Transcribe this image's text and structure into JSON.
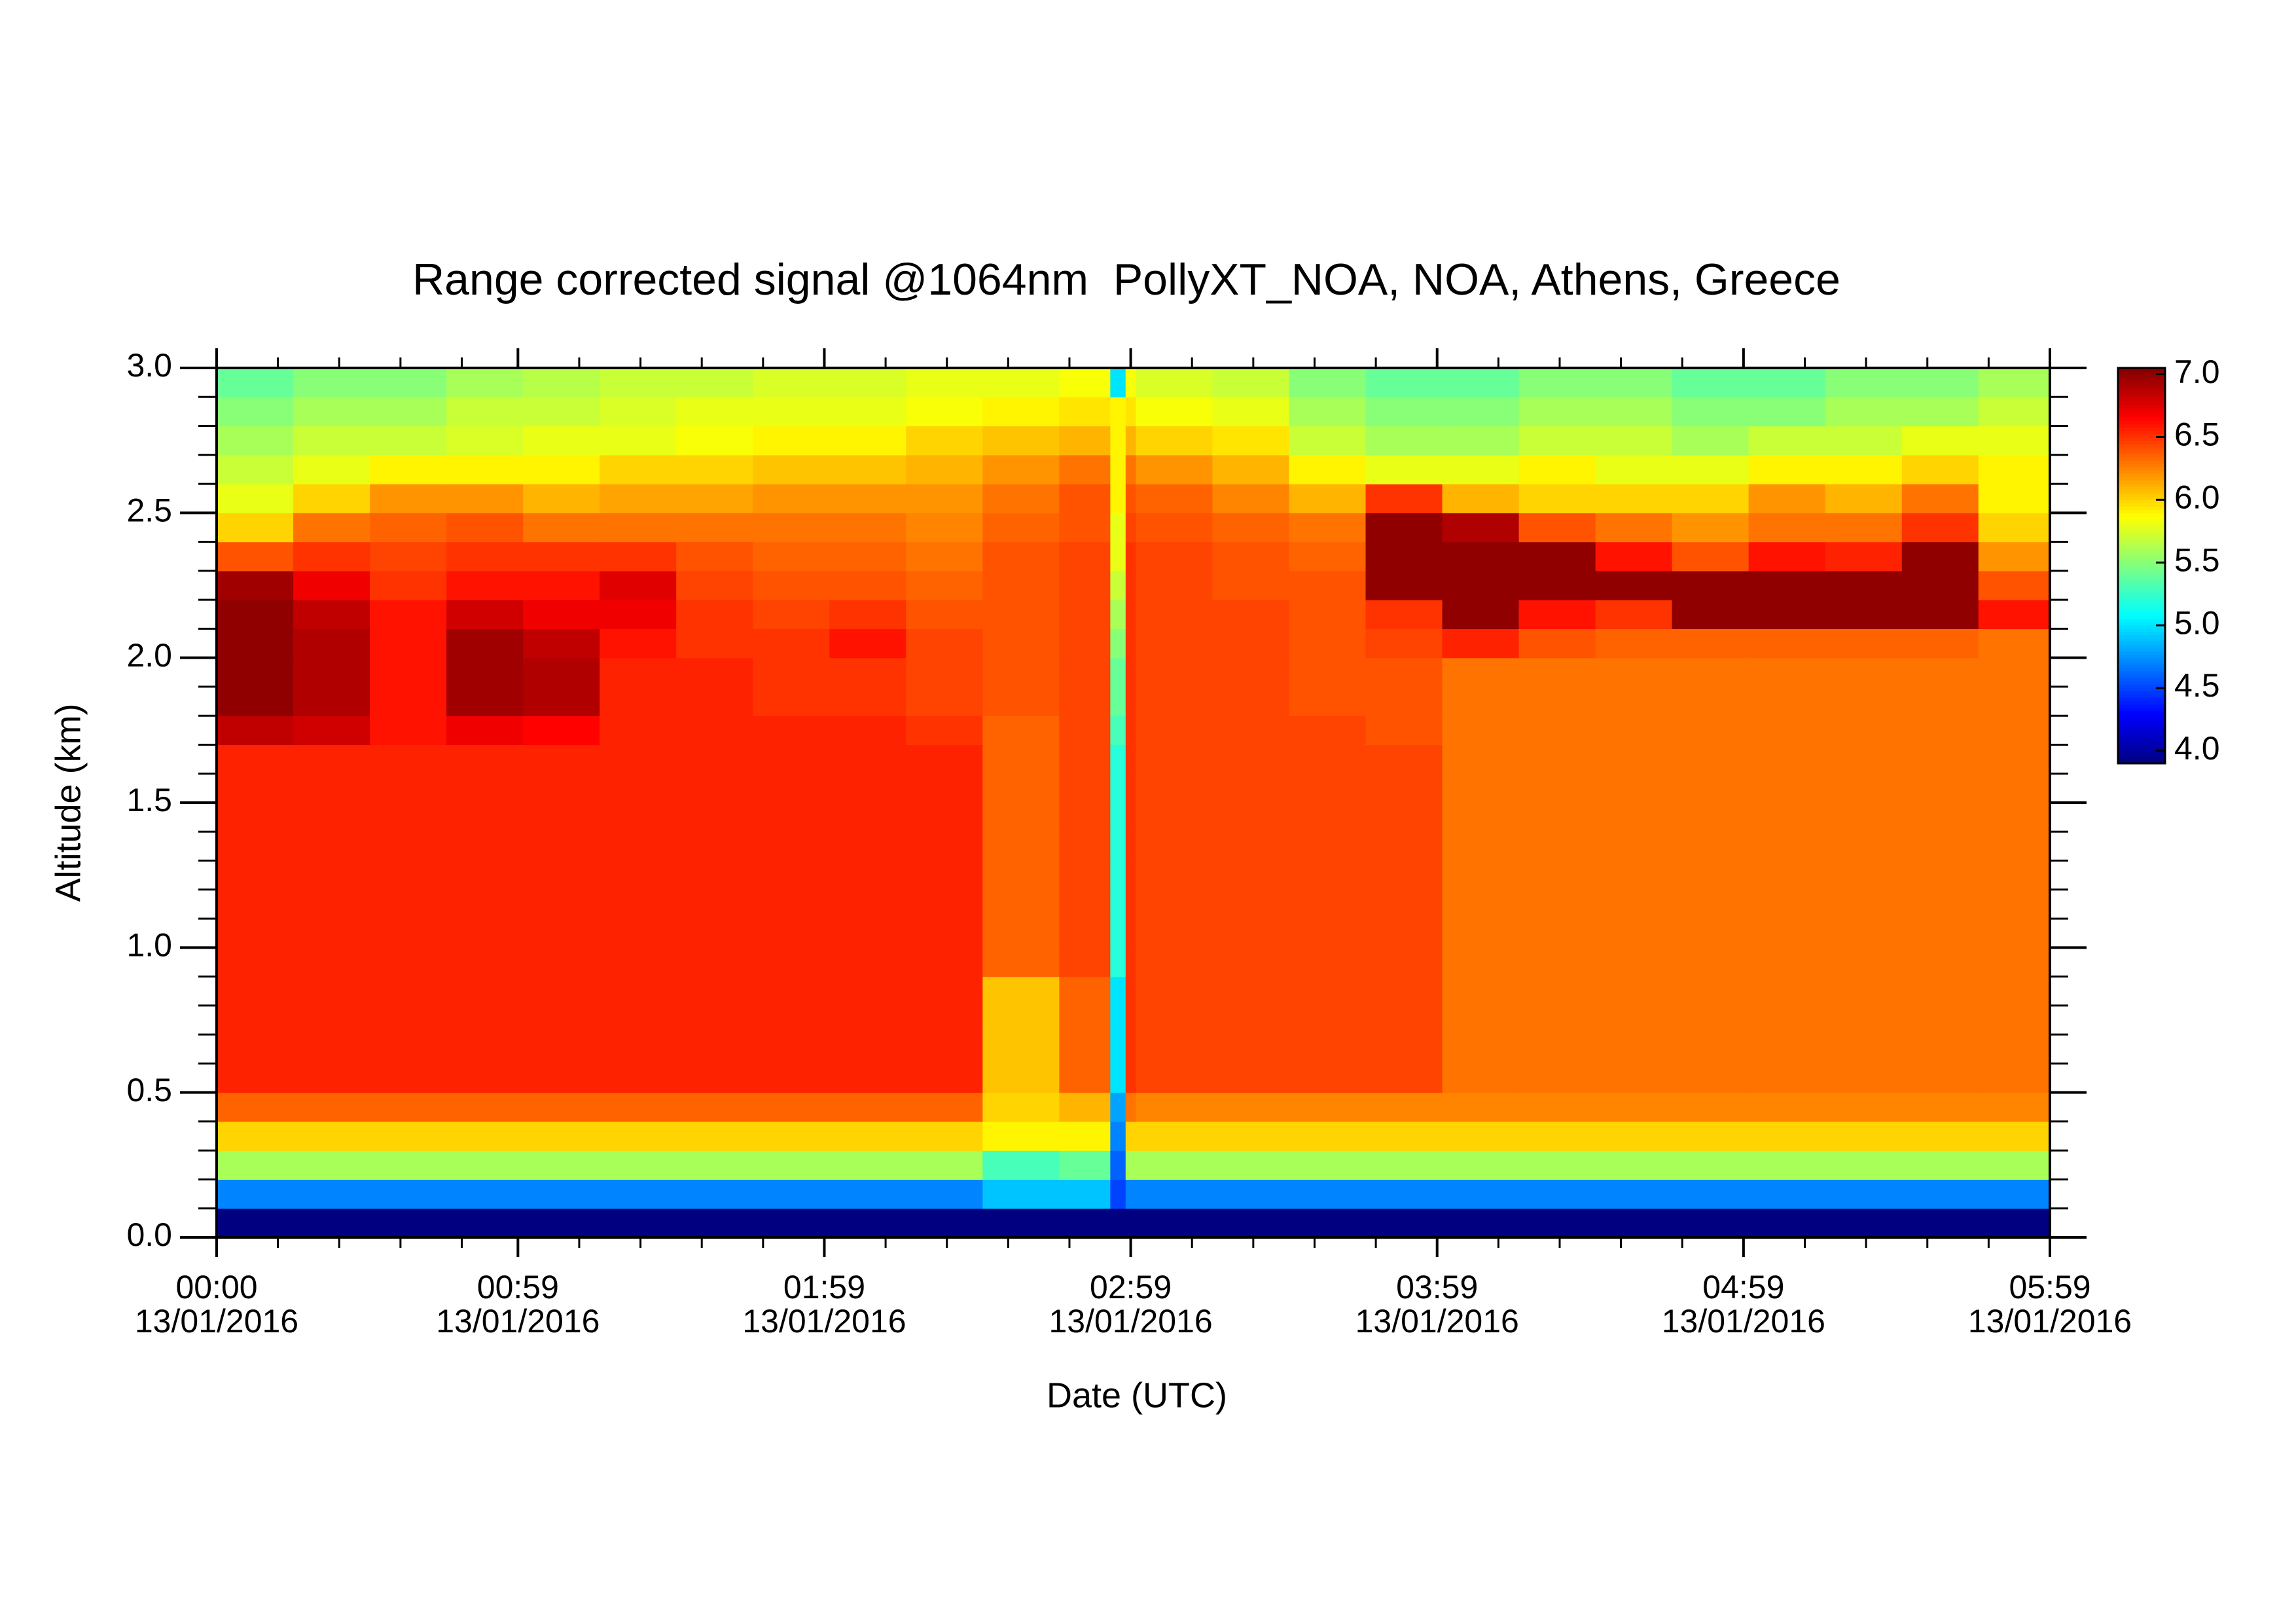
{
  "chart_data": {
    "type": "heatmap",
    "title": "Range corrected signal @1064nm  PollyXT_NOA, NOA, Athens, Greece",
    "x_label": "Date (UTC)",
    "y_label": "Altitude (km)",
    "xtick_date": "13/01/2016",
    "colormap": "jet",
    "xlim": [
      0,
      359
    ],
    "xticks": [
      {
        "value": 0,
        "label": "00:00"
      },
      {
        "value": 59,
        "label": "00:59"
      },
      {
        "value": 119,
        "label": "01:59"
      },
      {
        "value": 179,
        "label": "02:59"
      },
      {
        "value": 239,
        "label": "03:59"
      },
      {
        "value": 299,
        "label": "04:59"
      },
      {
        "value": 359,
        "label": "05:59"
      }
    ],
    "xminorticks": [
      12,
      24,
      36,
      48,
      71,
      83,
      95,
      107,
      131,
      143,
      155,
      167,
      191,
      203,
      215,
      227,
      251,
      263,
      275,
      287,
      311,
      323,
      335,
      347
    ],
    "ylim": [
      0,
      3
    ],
    "yticks": [
      {
        "value": 0,
        "label": "0.0"
      },
      0.5,
      {
        "value": 1,
        "label": "1.0"
      },
      1.5,
      {
        "value": 2,
        "label": "2.0"
      },
      2.5,
      {
        "value": 3,
        "label": "3.0"
      }
    ],
    "yminorticks": [
      0.1,
      0.2,
      0.3,
      0.4,
      0.6,
      0.7,
      0.8,
      0.9,
      1.1,
      1.2,
      1.3,
      1.4,
      1.6,
      1.7,
      1.8,
      1.9,
      2.1,
      2.2,
      2.3,
      2.4,
      2.6,
      2.7,
      2.8,
      2.9
    ],
    "zlim": [
      3.9,
      7.05
    ],
    "zticks": [
      {
        "value": 4,
        "label": "4.0"
      },
      4.5,
      {
        "value": 5,
        "label": "5.0"
      },
      5.5,
      {
        "value": 6,
        "label": "6.0"
      },
      6.5,
      {
        "value": 7,
        "label": "7.0"
      }
    ],
    "xbins": [
      0,
      15,
      30,
      45,
      60,
      75,
      90,
      105,
      120,
      135,
      150,
      165,
      175,
      178,
      180,
      195,
      210,
      225,
      240,
      255,
      270,
      285,
      300,
      315,
      330,
      345,
      359
    ],
    "ybins": [
      0,
      0.1,
      0.2,
      0.3,
      0.4,
      0.5,
      0.6,
      0.7,
      0.8,
      0.9,
      1.0,
      1.1,
      1.2,
      1.3,
      1.4,
      1.5,
      1.6,
      1.7,
      1.8,
      1.9,
      2.0,
      2.1,
      2.2,
      2.3,
      2.4,
      2.5,
      2.6,
      2.7,
      2.8,
      2.9,
      3.0
    ],
    "values": [
      [
        3.9,
        3.9,
        3.9,
        3.9,
        3.9,
        3.9,
        3.9,
        3.9,
        3.9,
        3.9,
        3.9,
        3.9,
        3.9,
        3.9,
        3.9,
        3.9,
        3.9,
        3.9,
        3.9,
        3.9,
        3.9,
        3.9,
        3.9,
        3.9,
        3.9,
        3.9
      ],
      [
        4.7,
        4.7,
        4.7,
        4.7,
        4.7,
        4.7,
        4.7,
        4.7,
        4.7,
        4.7,
        4.9,
        4.9,
        4.5,
        4.7,
        4.7,
        4.7,
        4.7,
        4.7,
        4.7,
        4.7,
        4.7,
        4.7,
        4.7,
        4.7,
        4.7,
        4.7
      ],
      [
        5.6,
        5.6,
        5.6,
        5.6,
        5.6,
        5.6,
        5.6,
        5.6,
        5.6,
        5.6,
        5.3,
        5.4,
        4.6,
        5.6,
        5.6,
        5.6,
        5.6,
        5.6,
        5.6,
        5.6,
        5.6,
        5.6,
        5.6,
        5.6,
        5.6,
        5.6
      ],
      [
        6.0,
        6.0,
        6.0,
        6.0,
        6.0,
        6.0,
        6.0,
        6.0,
        6.0,
        6.0,
        5.9,
        5.9,
        4.7,
        6.0,
        6.0,
        6.0,
        6.0,
        6.0,
        6.0,
        6.0,
        6.0,
        6.0,
        6.0,
        6.0,
        6.0,
        6.0
      ],
      [
        6.35,
        6.35,
        6.35,
        6.35,
        6.35,
        6.35,
        6.35,
        6.35,
        6.35,
        6.35,
        6.0,
        6.1,
        4.8,
        6.3,
        6.25,
        6.25,
        6.25,
        6.25,
        6.25,
        6.25,
        6.25,
        6.25,
        6.25,
        6.25,
        6.25,
        6.25
      ],
      [
        6.55,
        6.55,
        6.55,
        6.55,
        6.55,
        6.55,
        6.55,
        6.55,
        6.55,
        6.55,
        6.05,
        6.35,
        5.0,
        6.5,
        6.45,
        6.45,
        6.45,
        6.45,
        6.3,
        6.3,
        6.3,
        6.3,
        6.3,
        6.3,
        6.3,
        6.3
      ],
      [
        6.55,
        6.55,
        6.55,
        6.55,
        6.55,
        6.55,
        6.55,
        6.55,
        6.55,
        6.55,
        6.05,
        6.35,
        5.0,
        6.5,
        6.45,
        6.45,
        6.45,
        6.45,
        6.3,
        6.3,
        6.3,
        6.3,
        6.3,
        6.3,
        6.3,
        6.3
      ],
      [
        6.55,
        6.55,
        6.55,
        6.55,
        6.55,
        6.55,
        6.55,
        6.55,
        6.55,
        6.55,
        6.05,
        6.35,
        5.0,
        6.5,
        6.45,
        6.45,
        6.45,
        6.45,
        6.3,
        6.3,
        6.3,
        6.3,
        6.3,
        6.3,
        6.3,
        6.3
      ],
      [
        6.55,
        6.55,
        6.55,
        6.55,
        6.55,
        6.55,
        6.55,
        6.55,
        6.55,
        6.55,
        6.05,
        6.35,
        5.0,
        6.5,
        6.45,
        6.45,
        6.45,
        6.45,
        6.3,
        6.3,
        6.3,
        6.3,
        6.3,
        6.3,
        6.3,
        6.3
      ],
      [
        6.55,
        6.55,
        6.55,
        6.55,
        6.55,
        6.55,
        6.55,
        6.55,
        6.55,
        6.55,
        6.35,
        6.45,
        5.2,
        6.5,
        6.45,
        6.45,
        6.45,
        6.45,
        6.3,
        6.3,
        6.3,
        6.3,
        6.3,
        6.3,
        6.3,
        6.3
      ],
      [
        6.55,
        6.55,
        6.55,
        6.55,
        6.55,
        6.55,
        6.55,
        6.55,
        6.55,
        6.55,
        6.35,
        6.45,
        5.2,
        6.5,
        6.45,
        6.45,
        6.45,
        6.45,
        6.3,
        6.3,
        6.3,
        6.3,
        6.3,
        6.3,
        6.3,
        6.3
      ],
      [
        6.55,
        6.55,
        6.55,
        6.55,
        6.55,
        6.55,
        6.55,
        6.55,
        6.55,
        6.55,
        6.35,
        6.45,
        5.2,
        6.5,
        6.45,
        6.45,
        6.45,
        6.45,
        6.3,
        6.3,
        6.3,
        6.3,
        6.3,
        6.3,
        6.3,
        6.3
      ],
      [
        6.55,
        6.55,
        6.55,
        6.55,
        6.55,
        6.55,
        6.55,
        6.55,
        6.55,
        6.55,
        6.35,
        6.45,
        5.2,
        6.5,
        6.45,
        6.45,
        6.45,
        6.45,
        6.3,
        6.3,
        6.3,
        6.3,
        6.3,
        6.3,
        6.3,
        6.3
      ],
      [
        6.55,
        6.55,
        6.55,
        6.55,
        6.55,
        6.55,
        6.55,
        6.55,
        6.55,
        6.55,
        6.35,
        6.45,
        5.2,
        6.5,
        6.45,
        6.45,
        6.45,
        6.45,
        6.3,
        6.3,
        6.3,
        6.3,
        6.3,
        6.3,
        6.3,
        6.3
      ],
      [
        6.55,
        6.55,
        6.55,
        6.55,
        6.55,
        6.55,
        6.55,
        6.55,
        6.55,
        6.55,
        6.35,
        6.45,
        5.2,
        6.5,
        6.45,
        6.45,
        6.45,
        6.45,
        6.3,
        6.3,
        6.3,
        6.3,
        6.3,
        6.3,
        6.3,
        6.3
      ],
      [
        6.55,
        6.55,
        6.55,
        6.55,
        6.55,
        6.55,
        6.55,
        6.55,
        6.55,
        6.55,
        6.35,
        6.45,
        5.2,
        6.5,
        6.45,
        6.45,
        6.45,
        6.45,
        6.3,
        6.3,
        6.3,
        6.3,
        6.3,
        6.3,
        6.3,
        6.3
      ],
      [
        6.55,
        6.55,
        6.55,
        6.55,
        6.55,
        6.55,
        6.55,
        6.55,
        6.55,
        6.55,
        6.35,
        6.45,
        5.2,
        6.5,
        6.45,
        6.45,
        6.45,
        6.45,
        6.3,
        6.3,
        6.3,
        6.3,
        6.3,
        6.3,
        6.3,
        6.3
      ],
      [
        6.85,
        6.8,
        6.6,
        6.7,
        6.65,
        6.55,
        6.55,
        6.55,
        6.55,
        6.5,
        6.35,
        6.45,
        5.3,
        6.5,
        6.45,
        6.45,
        6.45,
        6.4,
        6.3,
        6.3,
        6.3,
        6.3,
        6.3,
        6.3,
        6.3,
        6.3
      ],
      [
        7.0,
        6.9,
        6.6,
        6.95,
        6.9,
        6.55,
        6.55,
        6.5,
        6.5,
        6.45,
        6.4,
        6.45,
        5.4,
        6.5,
        6.45,
        6.45,
        6.4,
        6.4,
        6.3,
        6.3,
        6.3,
        6.3,
        6.3,
        6.3,
        6.3,
        6.3
      ],
      [
        7.0,
        6.9,
        6.6,
        6.95,
        6.9,
        6.55,
        6.55,
        6.5,
        6.5,
        6.45,
        6.4,
        6.45,
        5.4,
        6.5,
        6.45,
        6.45,
        6.4,
        6.4,
        6.3,
        6.3,
        6.3,
        6.3,
        6.3,
        6.3,
        6.3,
        6.3
      ],
      [
        7.0,
        6.9,
        6.6,
        6.95,
        6.85,
        6.6,
        6.5,
        6.5,
        6.6,
        6.45,
        6.4,
        6.45,
        5.5,
        6.5,
        6.45,
        6.45,
        6.4,
        6.45,
        6.55,
        6.4,
        6.35,
        6.35,
        6.35,
        6.35,
        6.35,
        6.3
      ],
      [
        7.0,
        6.85,
        6.6,
        6.8,
        6.7,
        6.7,
        6.5,
        6.45,
        6.5,
        6.4,
        6.4,
        6.45,
        5.6,
        6.5,
        6.45,
        6.45,
        6.4,
        6.5,
        7.0,
        6.6,
        6.5,
        7.0,
        7.0,
        7.0,
        7.0,
        6.6
      ],
      [
        6.95,
        6.7,
        6.5,
        6.6,
        6.6,
        6.75,
        6.45,
        6.4,
        6.4,
        6.35,
        6.4,
        6.45,
        5.7,
        6.5,
        6.45,
        6.4,
        6.4,
        7.0,
        7.0,
        7.0,
        7.0,
        7.0,
        7.0,
        7.0,
        7.0,
        6.4
      ],
      [
        6.4,
        6.5,
        6.45,
        6.5,
        6.5,
        6.5,
        6.4,
        6.35,
        6.35,
        6.3,
        6.4,
        6.45,
        5.8,
        6.5,
        6.45,
        6.4,
        6.35,
        7.0,
        7.0,
        7.0,
        6.6,
        6.4,
        6.6,
        6.55,
        7.0,
        6.2
      ],
      [
        6.0,
        6.3,
        6.35,
        6.4,
        6.3,
        6.3,
        6.3,
        6.3,
        6.3,
        6.25,
        6.35,
        6.4,
        5.8,
        6.45,
        6.4,
        6.35,
        6.3,
        7.0,
        6.9,
        6.4,
        6.3,
        6.2,
        6.3,
        6.3,
        6.5,
        6.0
      ],
      [
        5.8,
        6.0,
        6.2,
        6.2,
        6.1,
        6.15,
        6.15,
        6.2,
        6.2,
        6.2,
        6.3,
        6.4,
        5.9,
        6.4,
        6.35,
        6.25,
        6.1,
        6.5,
        6.1,
        6.0,
        6.0,
        6.0,
        6.2,
        6.1,
        6.3,
        5.9
      ],
      [
        5.7,
        5.8,
        5.9,
        5.9,
        5.9,
        6.0,
        6.0,
        6.05,
        6.05,
        6.1,
        6.2,
        6.3,
        5.9,
        6.3,
        6.2,
        6.1,
        5.9,
        5.8,
        5.8,
        5.9,
        5.8,
        5.8,
        5.9,
        5.9,
        6.0,
        5.9
      ],
      [
        5.6,
        5.7,
        5.7,
        5.75,
        5.8,
        5.8,
        5.85,
        5.9,
        5.9,
        6.0,
        6.05,
        6.1,
        5.9,
        6.1,
        6.0,
        5.95,
        5.7,
        5.6,
        5.6,
        5.7,
        5.7,
        5.6,
        5.7,
        5.7,
        5.8,
        5.8
      ],
      [
        5.5,
        5.6,
        5.6,
        5.7,
        5.7,
        5.75,
        5.8,
        5.8,
        5.8,
        5.85,
        5.9,
        5.95,
        5.9,
        5.95,
        5.85,
        5.8,
        5.6,
        5.5,
        5.5,
        5.6,
        5.6,
        5.5,
        5.5,
        5.6,
        5.6,
        5.7
      ],
      [
        5.4,
        5.5,
        5.5,
        5.6,
        5.65,
        5.7,
        5.7,
        5.75,
        5.75,
        5.8,
        5.8,
        5.85,
        5.0,
        5.85,
        5.75,
        5.7,
        5.5,
        5.4,
        5.4,
        5.5,
        5.5,
        5.4,
        5.4,
        5.5,
        5.5,
        5.6
      ]
    ]
  }
}
